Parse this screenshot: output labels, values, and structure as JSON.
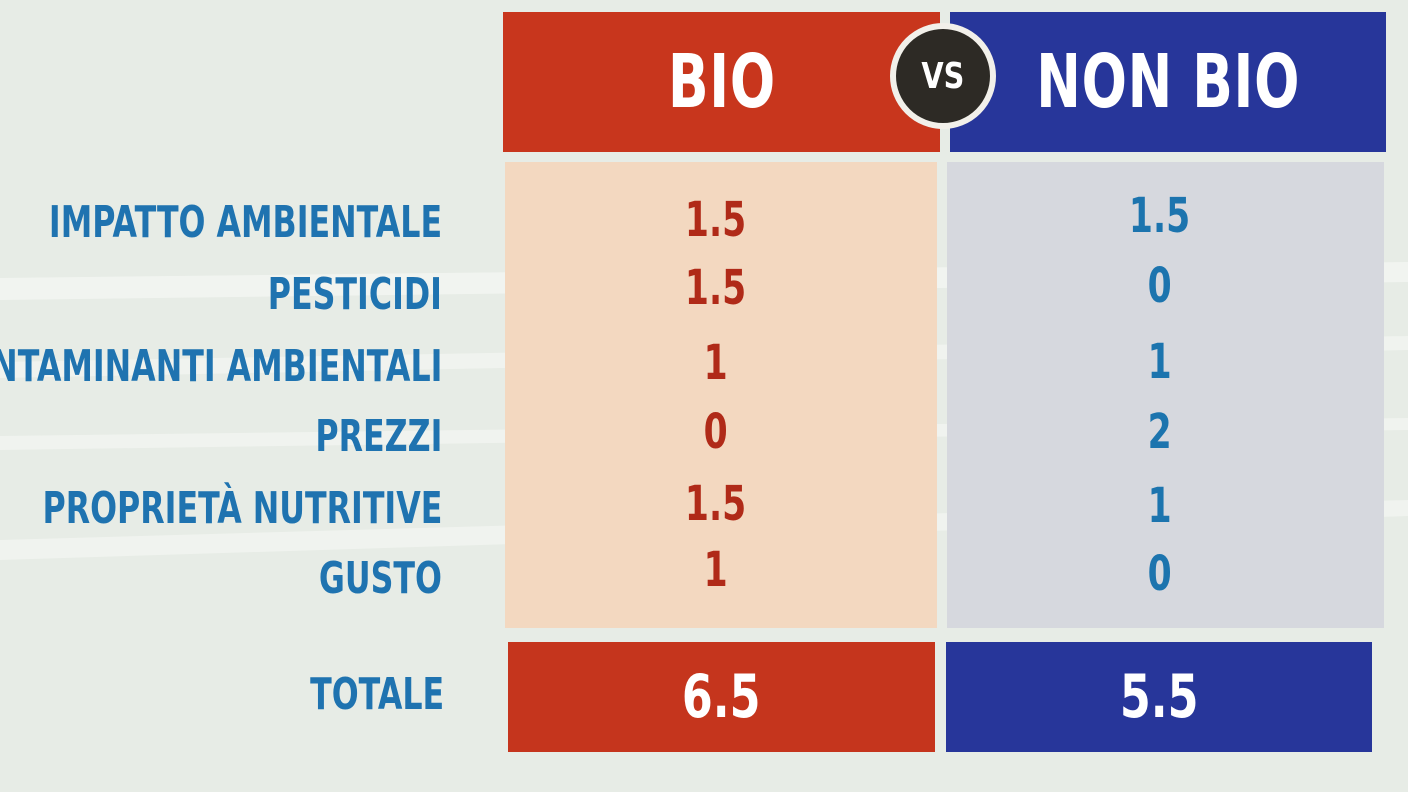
{
  "header": {
    "bio_label": "BIO",
    "vs_label": "VS",
    "nonbio_label": "NON BIO"
  },
  "rows": [
    {
      "label": "IMPATTO AMBIENTALE",
      "bio": "1.5",
      "nonbio": "1.5"
    },
    {
      "label": "PESTICIDI",
      "bio": "1.5",
      "nonbio": "0"
    },
    {
      "label": "CONTAMINANTI AMBIENTALI",
      "bio": "1",
      "nonbio": "1"
    },
    {
      "label": "PREZZI",
      "bio": "0",
      "nonbio": "2"
    },
    {
      "label": "PROPRIETÀ NUTRITIVE",
      "bio": "1.5",
      "nonbio": "1"
    },
    {
      "label": "GUSTO",
      "bio": "1",
      "nonbio": "0"
    }
  ],
  "total": {
    "label": "TOTALE",
    "bio": "6.5",
    "nonbio": "5.5"
  },
  "colors": {
    "bio_red": "#c8361d",
    "nonbio_blue": "#27369a",
    "label_blue": "#1f73b0",
    "bio_panel": "#f3d8c0",
    "nonbio_panel": "#d6d8de"
  }
}
